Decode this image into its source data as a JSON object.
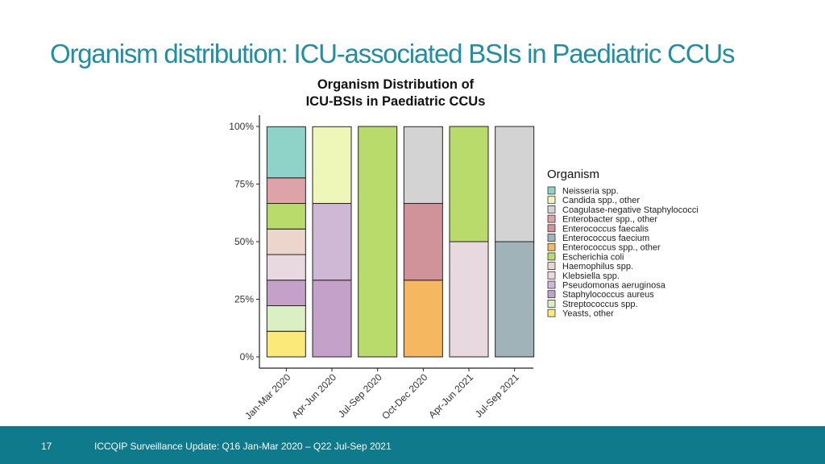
{
  "slide": {
    "title": "Organism distribution: ICU-associated BSIs in Paediatric CCUs",
    "footer_page": "17",
    "footer_text": "ICCQIP Surveillance Update: Q16 Jan-Mar 2020 – Q22 Jul-Sep 2021"
  },
  "chart_data": {
    "type": "bar",
    "stacked": "percent",
    "title_lines": [
      "Organism Distribution of",
      "ICU-BSIs in Paediatric CCUs"
    ],
    "categories": [
      "Jan-Mar 2020",
      "Apr-Jun 2020",
      "Jul-Sep 2020",
      "Oct-Dec 2020",
      "Apr-Jun 2021",
      "Jul-Sep 2021"
    ],
    "y_ticks": [
      "0%",
      "25%",
      "50%",
      "75%",
      "100%"
    ],
    "ylim": [
      0,
      1
    ],
    "legend_title": "Organism",
    "legend_position": "right",
    "series": [
      {
        "name": "Neisseria spp.",
        "color": "#8fd3c8",
        "values": [
          0.222,
          0,
          0,
          0,
          0,
          0
        ]
      },
      {
        "name": "Candida spp., other",
        "color": "#eef7b8",
        "values": [
          0,
          0.333,
          0,
          0,
          0,
          0
        ]
      },
      {
        "name": "Coagulase-negative Staphylococci",
        "color": "#d3d3d3",
        "values": [
          0,
          0,
          0,
          0.333,
          0,
          0.5
        ]
      },
      {
        "name": "Enterobacter spp., other",
        "color": "#dea3a8",
        "values": [
          0.111,
          0,
          0,
          0,
          0,
          0
        ]
      },
      {
        "name": "Enterococcus faecalis",
        "color": "#d0939a",
        "values": [
          0,
          0,
          0,
          0.333,
          0,
          0
        ]
      },
      {
        "name": "Enterococcus faecium",
        "color": "#9fb3b8",
        "values": [
          0,
          0,
          0,
          0,
          0,
          0.5
        ]
      },
      {
        "name": "Enterococcus spp., other",
        "color": "#f5b760",
        "values": [
          0,
          0,
          0,
          0.333,
          0,
          0
        ]
      },
      {
        "name": "Escherichia coli",
        "color": "#b8db6c",
        "values": [
          0.111,
          0,
          1.0,
          0,
          0.5,
          0
        ]
      },
      {
        "name": "Haemophilus spp.",
        "color": "#ecd5cd",
        "values": [
          0.111,
          0,
          0,
          0,
          0,
          0
        ]
      },
      {
        "name": "Klebsiella spp.",
        "color": "#e8d8e0",
        "values": [
          0.111,
          0,
          0,
          0,
          0.5,
          0
        ]
      },
      {
        "name": "Pseudomonas aeruginosa",
        "color": "#cfb7d6",
        "values": [
          0,
          0.333,
          0,
          0,
          0,
          0
        ]
      },
      {
        "name": "Staphylococcus aureus",
        "color": "#c4a1c8",
        "values": [
          0.111,
          0.333,
          0,
          0,
          0,
          0
        ]
      },
      {
        "name": "Streptococcus spp.",
        "color": "#daefc2",
        "values": [
          0.111,
          0,
          0,
          0,
          0,
          0
        ]
      },
      {
        "name": "Yeasts, other",
        "color": "#fbe97a",
        "values": [
          0.111,
          0,
          0,
          0,
          0,
          0
        ]
      }
    ]
  }
}
